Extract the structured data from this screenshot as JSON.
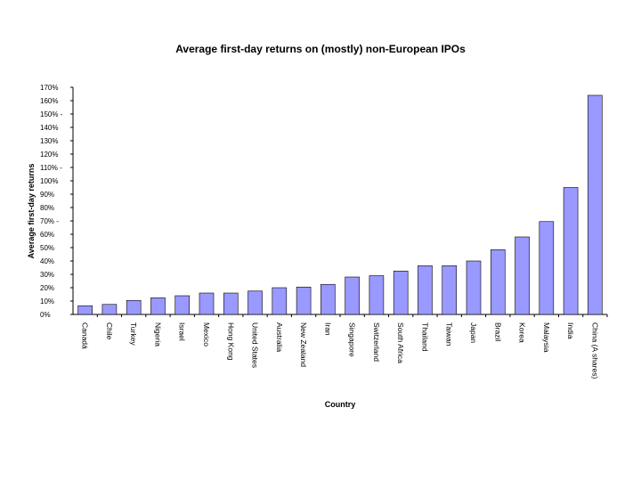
{
  "chart_data": {
    "type": "bar",
    "title": "Average first-day returns on (mostly) non-European IPOs",
    "xlabel": "Country",
    "ylabel": "Average first-day returns",
    "ylim": [
      0,
      170
    ],
    "yticks": [
      "0%",
      "10%",
      "20%",
      "30%",
      "40%",
      "50%",
      "60%",
      "70% -",
      "80%",
      "90%",
      "100%",
      "110% -",
      "120%",
      "130%",
      "140%",
      "150% -",
      "160%",
      "170%"
    ],
    "categories": [
      "Canadá",
      "Chile",
      "Turkey",
      "Nigeria",
      "Israel",
      "Mexico",
      "Hong Kong",
      "United States",
      "Australia",
      "New Zealand",
      "Iran",
      "Singapore",
      "Switzerland",
      "South Africa",
      "Thailand",
      "Taiwan",
      "Japan",
      "Brazil",
      "Korea",
      "Malaysia",
      "India",
      "China (A shares)"
    ],
    "values": [
      6.5,
      7.5,
      10.5,
      12.5,
      14,
      16,
      16,
      17.5,
      20,
      20.5,
      22.5,
      28,
      29,
      32.5,
      36.5,
      36.5,
      40,
      48.5,
      58,
      69.5,
      95,
      164
    ],
    "colors": {
      "bar": "#9999ff",
      "bar_edge": "#000000",
      "axis": "#000000",
      "text": "#000000"
    },
    "grid": false,
    "legend": "none"
  }
}
